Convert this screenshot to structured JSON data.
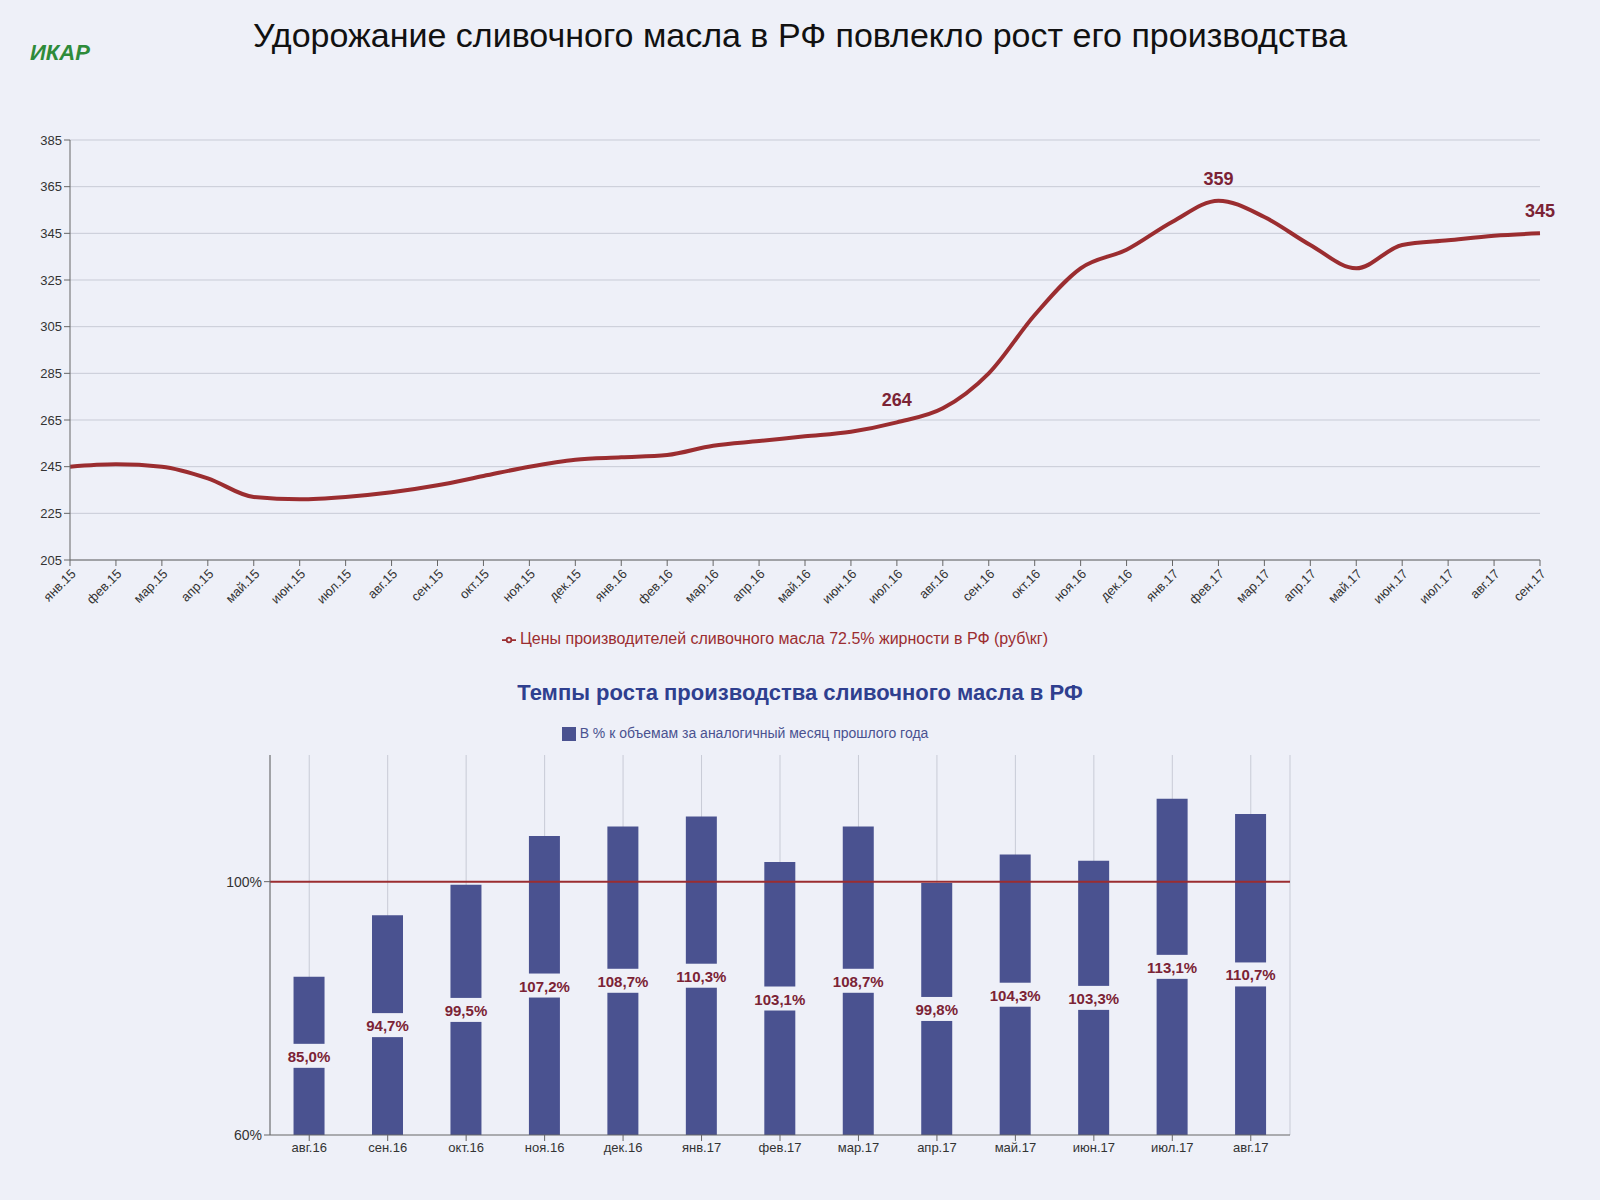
{
  "title": "Удорожание сливочного масла в РФ повлекло рост его производства",
  "logo": "ИКАР",
  "chart_data": [
    {
      "type": "line",
      "categories": [
        "янв.15",
        "фев.15",
        "мар.15",
        "апр.15",
        "май.15",
        "июн.15",
        "июл.15",
        "авг.15",
        "сен.15",
        "окт.15",
        "ноя.15",
        "дек.15",
        "янв.16",
        "фев.16",
        "мар.16",
        "апр.16",
        "май.16",
        "июн.16",
        "июл.16",
        "авг.16",
        "сен.16",
        "окт.16",
        "ноя.16",
        "дек.16",
        "янв.17",
        "фев.17",
        "мар.17",
        "апр.17",
        "май.17",
        "июн.17",
        "июл.17",
        "авг.17",
        "сен.17"
      ],
      "series": [
        {
          "name": "Цены производителей сливочного масла 72.5% жирности в РФ (руб\\кг)",
          "color": "#9b2d30",
          "values": [
            245,
            246,
            245,
            240,
            232,
            231,
            232,
            234,
            237,
            241,
            245,
            248,
            249,
            250,
            254,
            256,
            258,
            260,
            264,
            270,
            285,
            310,
            330,
            338,
            350,
            359,
            352,
            340,
            330,
            340,
            342,
            344,
            345
          ]
        }
      ],
      "annotations": [
        {
          "x": "июл.16",
          "text": "264"
        },
        {
          "x": "фев.17",
          "text": "359"
        },
        {
          "x": "сен.17",
          "text": "345"
        }
      ],
      "ylim": [
        205,
        385
      ],
      "yticks": [
        205,
        225,
        245,
        265,
        285,
        305,
        325,
        345,
        365,
        385
      ],
      "grid": true,
      "legend": "bottom"
    },
    {
      "type": "bar",
      "title": "Темпы роста производства сливочного масла в РФ",
      "categories": [
        "авг.16",
        "сен.16",
        "окт.16",
        "ноя.16",
        "дек.16",
        "янв.17",
        "фев.17",
        "мар.17",
        "апр.17",
        "май.17",
        "июн.17",
        "июл.17",
        "авг.17"
      ],
      "series": [
        {
          "name": "В % к объемам за аналогичный месяц прошлого года",
          "color": "#4a5290",
          "values": [
            85.0,
            94.7,
            99.5,
            107.2,
            108.7,
            110.3,
            103.1,
            108.7,
            99.8,
            104.3,
            103.3,
            113.1,
            110.7
          ],
          "value_labels": [
            "85,0%",
            "94,7%",
            "99,5%",
            "107,2%",
            "108,7%",
            "110,3%",
            "103,1%",
            "108,7%",
            "99,8%",
            "104,3%",
            "103,3%",
            "113,1%",
            "110,7%"
          ]
        }
      ],
      "reference_line": 100,
      "ylim": [
        60,
        120
      ],
      "yticks": [
        {
          "value": 60,
          "label": "60%"
        },
        {
          "value": 100,
          "label": "100%"
        }
      ],
      "grid": true,
      "legend": "top",
      "data_labels": true
    }
  ]
}
